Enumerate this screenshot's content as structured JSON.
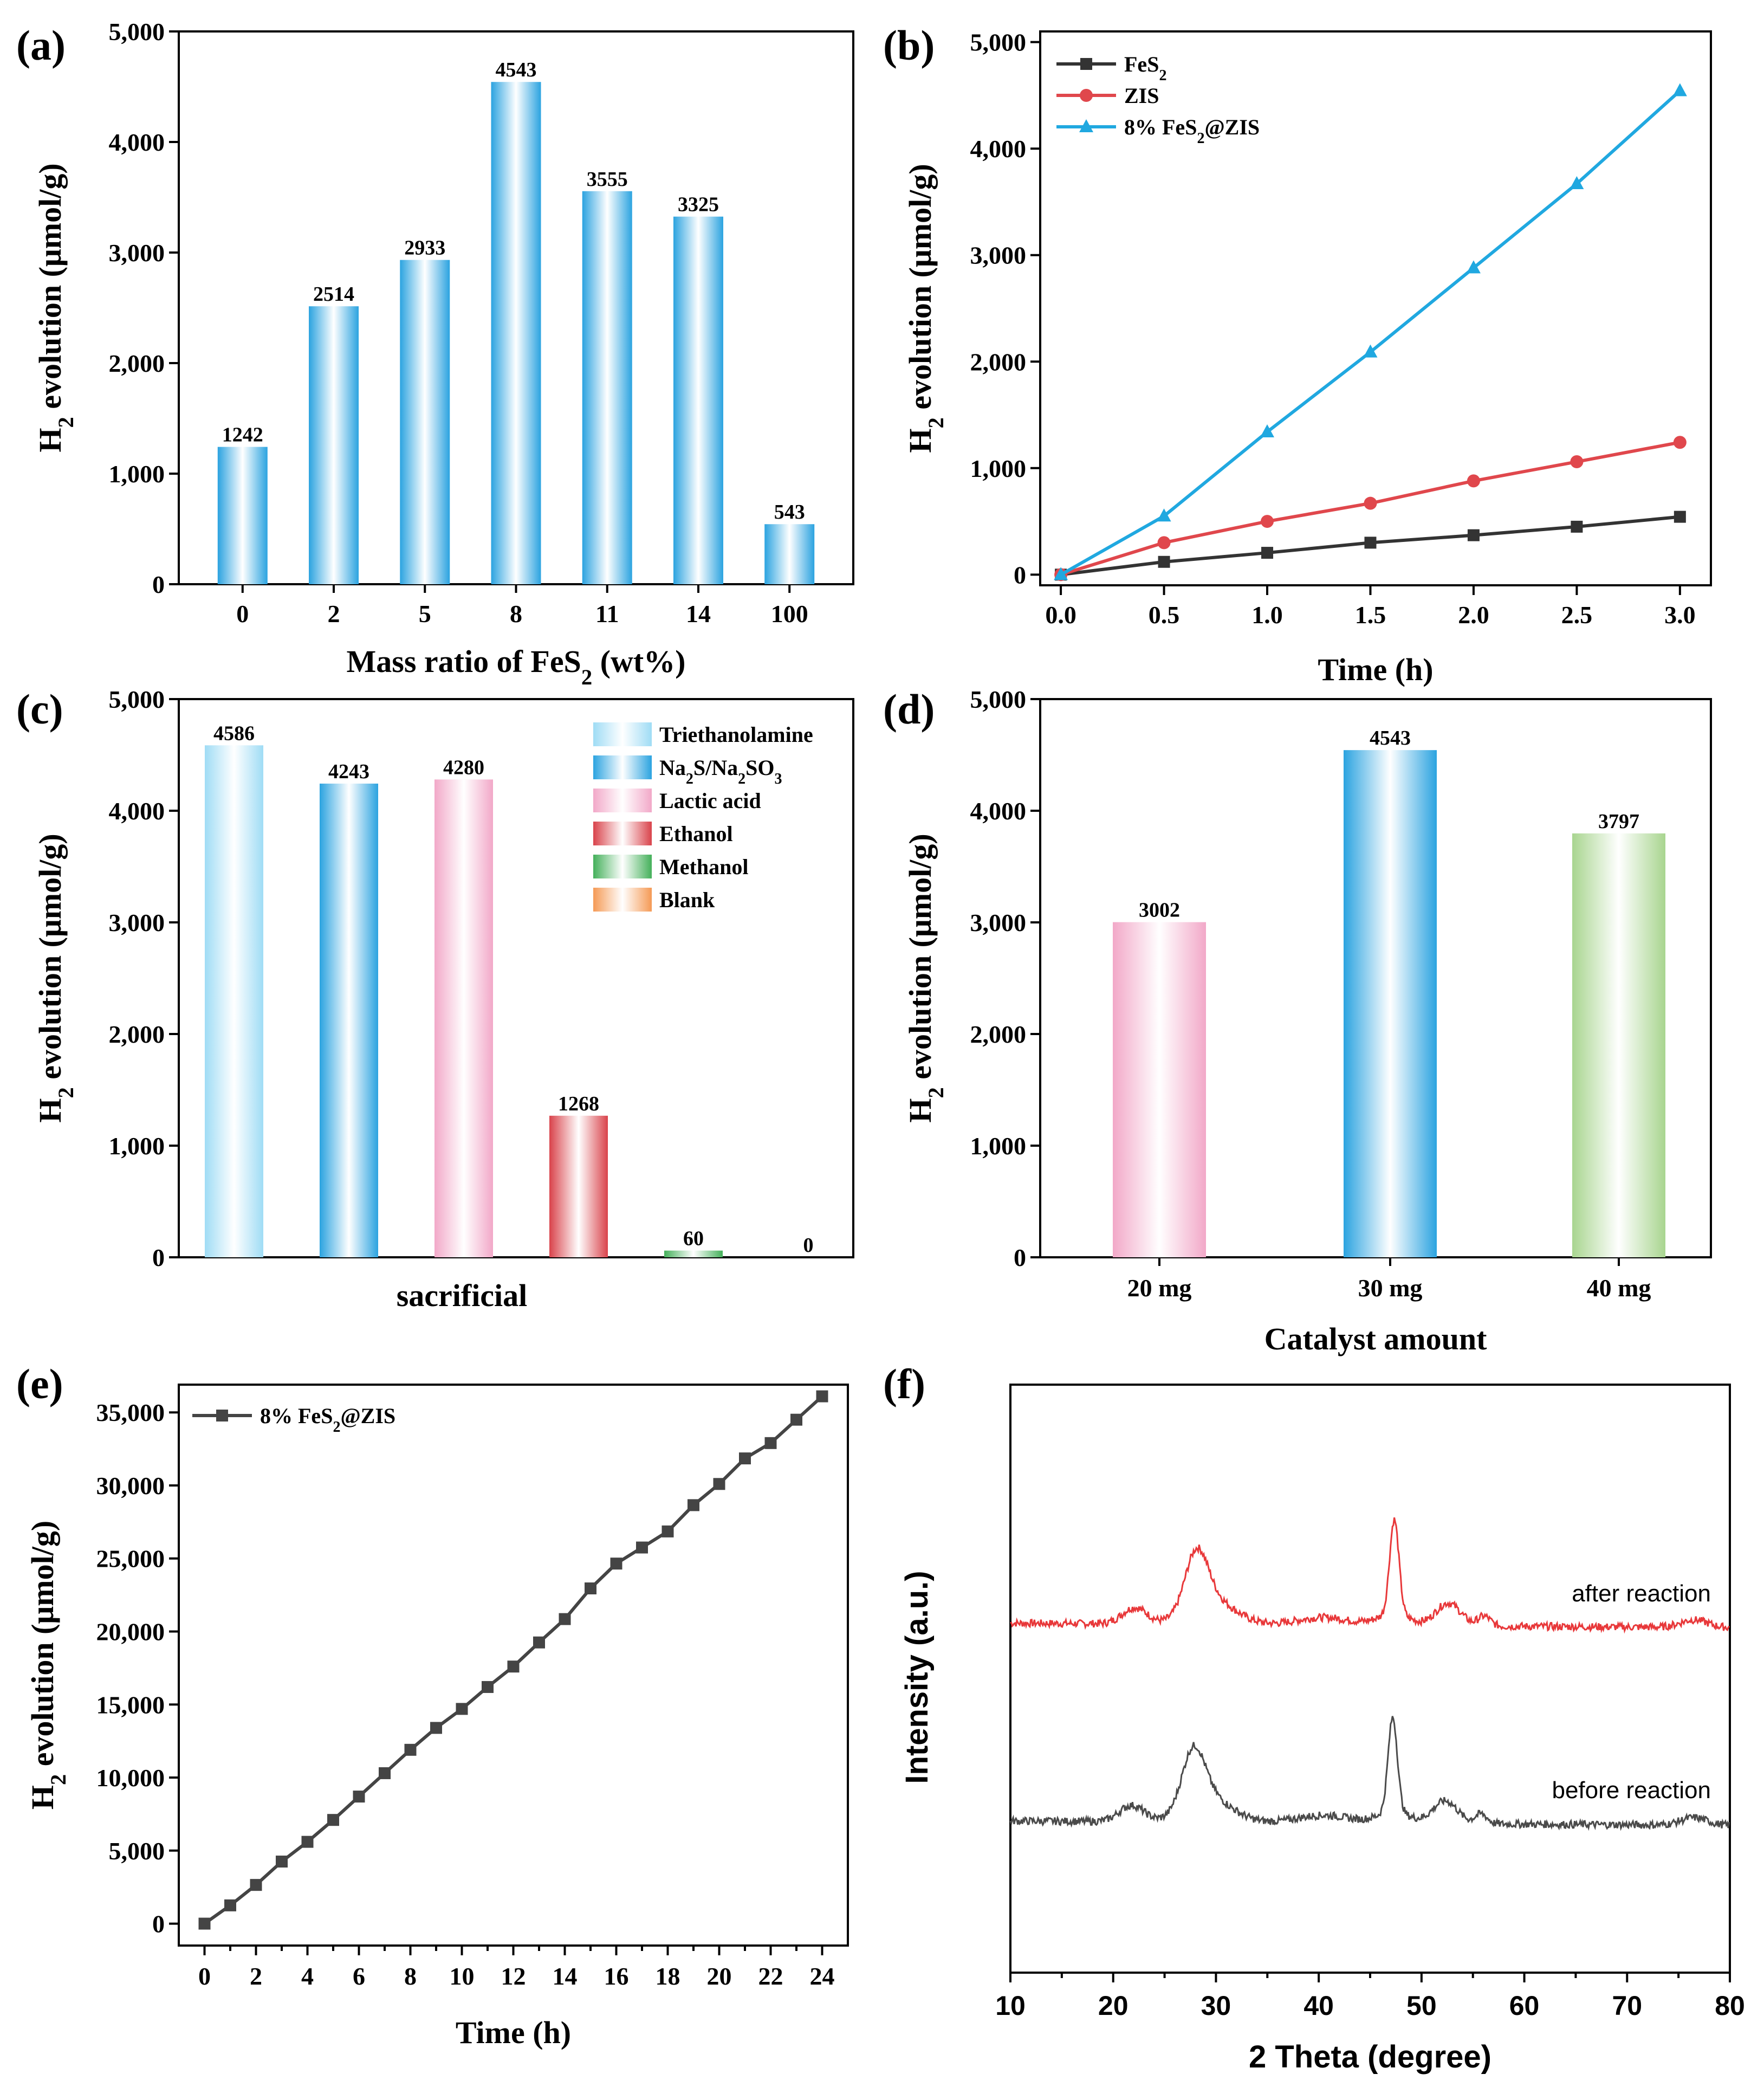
{
  "chart_data": [
    {
      "panel": "(a)",
      "type": "bar",
      "categories": [
        "0",
        "2",
        "5",
        "8",
        "11",
        "14",
        "100"
      ],
      "values": [
        1242,
        2514,
        2933,
        4543,
        3555,
        3325,
        543
      ],
      "value_labels": [
        "1242",
        "2514",
        "2933",
        "4543",
        "3555",
        "3325",
        "543"
      ],
      "xlabel": "Mass ratio of FeS₂ (wt%)",
      "ylabel": "H₂ evolution (μmol/g)",
      "ylim": [
        0,
        5000
      ],
      "yticks": [
        "0",
        "1,000",
        "2,000",
        "3,000",
        "4,000",
        "5,000"
      ],
      "bar_color": "#2ba3e0"
    },
    {
      "panel": "(b)",
      "type": "line",
      "x": [
        0,
        0.5,
        1.0,
        1.5,
        2.0,
        2.5,
        3.0
      ],
      "xticks": [
        "0.0",
        "0.5",
        "1.0",
        "1.5",
        "2.0",
        "2.5",
        "3.0"
      ],
      "series": [
        {
          "name": "FeS₂",
          "values": [
            0,
            120,
            205,
            300,
            370,
            450,
            543
          ],
          "color": "#333333",
          "marker": "square"
        },
        {
          "name": "ZIS",
          "values": [
            0,
            300,
            500,
            670,
            880,
            1060,
            1242
          ],
          "color": "#e0474c",
          "marker": "circle"
        },
        {
          "name": "8% FeS₂@ZIS",
          "values": [
            0,
            550,
            1340,
            2090,
            2880,
            3670,
            4543
          ],
          "color": "#20a8e0",
          "marker": "triangle"
        }
      ],
      "xlabel": "Time (h)",
      "ylabel": "H₂ evolution (μmol/g)",
      "xlim": [
        -0.1,
        3.15
      ],
      "ylim": [
        -100,
        5100
      ],
      "yticks": [
        "0",
        "1,000",
        "2,000",
        "3,000",
        "4,000",
        "5,000"
      ],
      "legend": "top-left"
    },
    {
      "panel": "(c)",
      "type": "bar",
      "categories": [
        "Triethanolamine",
        "Na₂S/Na₂SO₃",
        "Lactic acid",
        "Ethanol",
        "Methanol",
        "Blank"
      ],
      "values": [
        4586,
        4243,
        4280,
        1268,
        60,
        0
      ],
      "value_labels": [
        "4586",
        "4243",
        "4280",
        "1268",
        "60",
        "0"
      ],
      "colors": [
        "#9fdcf5",
        "#2ba3e0",
        "#f2a8c8",
        "#d9434b",
        "#44b05a",
        "#f59a55"
      ],
      "xlabel": "sacrificial",
      "ylabel": "H₂ evolution (μmol/g)",
      "ylim": [
        0,
        5000
      ],
      "yticks": [
        "0",
        "1,000",
        "2,000",
        "3,000",
        "4,000",
        "5,000"
      ],
      "legend": "top-right"
    },
    {
      "panel": "(d)",
      "type": "bar",
      "categories": [
        "20 mg",
        "30 mg",
        "40 mg"
      ],
      "values": [
        3002,
        4543,
        3797
      ],
      "value_labels": [
        "3002",
        "4543",
        "3797"
      ],
      "colors": [
        "#f2a8c8",
        "#2ba3e0",
        "#a8d58f"
      ],
      "xlabel": "Catalyst amount",
      "ylabel": "H₂ evolution (μmol/g)",
      "ylim": [
        0,
        5000
      ],
      "yticks": [
        "0",
        "1,000",
        "2,000",
        "3,000",
        "4,000",
        "5,000"
      ]
    },
    {
      "panel": "(e)",
      "type": "line",
      "x": [
        0,
        1,
        2,
        3,
        4,
        5,
        6,
        7,
        8,
        9,
        10,
        11,
        12,
        13,
        14,
        15,
        16,
        17,
        18,
        19,
        20,
        21,
        22,
        23,
        24
      ],
      "xticks": [
        "0",
        "2",
        "4",
        "6",
        "8",
        "10",
        "12",
        "14",
        "16",
        "18",
        "20",
        "22",
        "24"
      ],
      "series": [
        {
          "name": "8% FeS₂@ZIS",
          "values": [
            0,
            1250,
            2650,
            4250,
            5600,
            7100,
            8700,
            10300,
            11900,
            13400,
            14700,
            16200,
            17600,
            19250,
            20850,
            22950,
            24650,
            25750,
            26850,
            28650,
            30100,
            31850,
            32900,
            34500,
            36100
          ],
          "color": "#444444",
          "marker": "square"
        }
      ],
      "xlabel": "Time (h)",
      "ylabel": "H₂ evolution (μmol/g)",
      "xlim": [
        -1,
        25
      ],
      "ylim": [
        -1500,
        36900
      ],
      "yticks": [
        "0",
        "5,000",
        "10,000",
        "15,000",
        "20,000",
        "25,000",
        "30,000",
        "35,000"
      ],
      "legend": "top-left"
    },
    {
      "panel": "(f)",
      "type": "line",
      "xlabel": "2 Theta (degree)",
      "ylabel": "Intensity (a.u.)",
      "xlim": [
        10,
        80
      ],
      "xticks": [
        "10",
        "20",
        "30",
        "40",
        "50",
        "60",
        "70",
        "80"
      ],
      "series": [
        {
          "name": "after reaction",
          "color": "#e8383a",
          "peaks_2theta": [
            22,
            28,
            47.3,
            52.5,
            56
          ]
        },
        {
          "name": "before reaction",
          "color": "#4a4a4a",
          "peaks_2theta": [
            21.5,
            27.8,
            47.2,
            52.3,
            55.8
          ]
        }
      ]
    }
  ]
}
